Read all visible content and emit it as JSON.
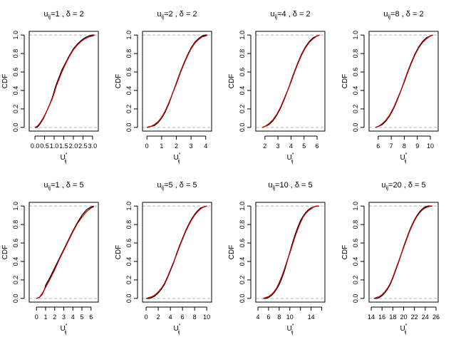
{
  "chart_data": [
    {
      "type": "line",
      "title_var": "u",
      "title_sub": "ij",
      "title_u": "1",
      "title_delta": "2",
      "xlabel_main": "U",
      "xlabel_sub": "ij",
      "ylabel": "CDF",
      "xlim": [
        -0.3,
        3.3
      ],
      "ylim": [
        -0.04,
        1.04
      ],
      "xticks": [
        0.0,
        0.5,
        1.0,
        1.5,
        2.0,
        2.5,
        3.0
      ],
      "xtick_labels": [
        "0.0",
        "0.5",
        "1.0",
        "1.5",
        "2.0",
        "2.5",
        "3.0"
      ],
      "yticks": [
        0.0,
        0.2,
        0.4,
        0.6,
        0.8,
        1.0
      ],
      "ytick_labels": [
        "0.0",
        "0.2",
        "0.4",
        "0.6",
        "0.8",
        "1.0"
      ],
      "reference_lines": [
        0,
        1
      ],
      "series": [
        {
          "color": "#000000",
          "x": [
            0.0,
            0.1,
            0.2,
            0.3,
            0.45,
            0.6,
            0.75,
            0.9,
            1.0,
            1.1,
            1.25,
            1.4,
            1.6,
            1.8,
            2.0,
            2.2,
            2.4,
            2.6,
            2.8,
            3.0,
            3.1
          ],
          "y": [
            0.0,
            0.0,
            0.02,
            0.05,
            0.1,
            0.17,
            0.24,
            0.32,
            0.39,
            0.46,
            0.54,
            0.62,
            0.7,
            0.78,
            0.85,
            0.9,
            0.94,
            0.97,
            0.99,
            1.0,
            1.0
          ]
        },
        {
          "color": "#cc0000",
          "x": [
            0.0,
            0.1,
            0.2,
            0.3,
            0.45,
            0.6,
            0.75,
            0.9,
            1.0,
            1.1,
            1.25,
            1.4,
            1.6,
            1.8,
            2.0,
            2.2,
            2.4,
            2.6,
            2.8,
            3.0,
            3.1
          ],
          "y": [
            0.0,
            0.01,
            0.03,
            0.06,
            0.11,
            0.17,
            0.24,
            0.31,
            0.37,
            0.44,
            0.52,
            0.6,
            0.69,
            0.77,
            0.84,
            0.89,
            0.93,
            0.96,
            0.98,
            0.99,
            1.0
          ]
        }
      ]
    },
    {
      "type": "line",
      "title_var": "u",
      "title_sub": "ij",
      "title_u": "2",
      "title_delta": "2",
      "xlabel_main": "U",
      "xlabel_sub": "ij",
      "ylabel": "CDF",
      "xlim": [
        -0.3,
        4.4
      ],
      "ylim": [
        -0.04,
        1.04
      ],
      "xticks": [
        0,
        1,
        2,
        3,
        4
      ],
      "xtick_labels": [
        "0",
        "1",
        "2",
        "3",
        "4"
      ],
      "yticks": [
        0.0,
        0.2,
        0.4,
        0.6,
        0.8,
        1.0
      ],
      "ytick_labels": [
        "0.0",
        "0.2",
        "0.4",
        "0.6",
        "0.8",
        "1.0"
      ],
      "reference_lines": [
        0,
        1
      ],
      "series": [
        {
          "color": "#000000",
          "x": [
            0.0,
            0.25,
            0.5,
            0.75,
            1.0,
            1.25,
            1.5,
            1.75,
            2.0,
            2.25,
            2.5,
            2.75,
            3.0,
            3.25,
            3.5,
            3.75,
            4.0,
            4.1
          ],
          "y": [
            0.0,
            0.01,
            0.02,
            0.05,
            0.1,
            0.17,
            0.26,
            0.37,
            0.48,
            0.59,
            0.69,
            0.78,
            0.86,
            0.92,
            0.96,
            0.99,
            1.0,
            1.0
          ]
        },
        {
          "color": "#cc0000",
          "x": [
            0.0,
            0.25,
            0.5,
            0.75,
            1.0,
            1.25,
            1.5,
            1.75,
            2.0,
            2.25,
            2.5,
            2.75,
            3.0,
            3.25,
            3.5,
            3.75,
            4.0,
            4.1
          ],
          "y": [
            0.0,
            0.01,
            0.03,
            0.06,
            0.11,
            0.18,
            0.27,
            0.37,
            0.47,
            0.58,
            0.68,
            0.77,
            0.85,
            0.91,
            0.95,
            0.98,
            0.99,
            1.0
          ]
        }
      ]
    },
    {
      "type": "line",
      "title_var": "u",
      "title_sub": "ij",
      "title_u": "4",
      "title_delta": "2",
      "xlabel_main": "U",
      "xlabel_sub": "ij",
      "ylabel": "CDF",
      "xlim": [
        1.3,
        6.6
      ],
      "ylim": [
        -0.04,
        1.04
      ],
      "xticks": [
        2,
        3,
        4,
        5,
        6
      ],
      "xtick_labels": [
        "2",
        "3",
        "4",
        "5",
        "6"
      ],
      "yticks": [
        0.0,
        0.2,
        0.4,
        0.6,
        0.8,
        1.0
      ],
      "ytick_labels": [
        "0.0",
        "0.2",
        "0.4",
        "0.6",
        "0.8",
        "1.0"
      ],
      "reference_lines": [
        0,
        1
      ],
      "series": [
        {
          "color": "#000000",
          "x": [
            1.8,
            2.0,
            2.3,
            2.6,
            2.9,
            3.2,
            3.5,
            3.8,
            4.0,
            4.2,
            4.5,
            4.8,
            5.1,
            5.4,
            5.7,
            6.0,
            6.2
          ],
          "y": [
            0.0,
            0.01,
            0.03,
            0.07,
            0.13,
            0.21,
            0.31,
            0.42,
            0.5,
            0.58,
            0.69,
            0.79,
            0.87,
            0.93,
            0.97,
            0.99,
            1.0
          ]
        },
        {
          "color": "#cc0000",
          "x": [
            1.8,
            2.0,
            2.3,
            2.6,
            2.9,
            3.2,
            3.5,
            3.8,
            4.0,
            4.2,
            4.5,
            4.8,
            5.1,
            5.4,
            5.7,
            6.0,
            6.2
          ],
          "y": [
            0.0,
            0.01,
            0.04,
            0.08,
            0.14,
            0.22,
            0.32,
            0.42,
            0.49,
            0.57,
            0.68,
            0.78,
            0.86,
            0.92,
            0.96,
            0.99,
            1.0
          ]
        }
      ]
    },
    {
      "type": "line",
      "title_var": "u",
      "title_sub": "ij",
      "title_u": "8",
      "title_delta": "2",
      "xlabel_main": "U",
      "xlabel_sub": "ij",
      "ylabel": "CDF",
      "xlim": [
        5.3,
        10.6
      ],
      "ylim": [
        -0.04,
        1.04
      ],
      "xticks": [
        6,
        7,
        8,
        9,
        10
      ],
      "xtick_labels": [
        "6",
        "7",
        "8",
        "9",
        "10"
      ],
      "yticks": [
        0.0,
        0.2,
        0.4,
        0.6,
        0.8,
        1.0
      ],
      "ytick_labels": [
        "0.0",
        "0.2",
        "0.4",
        "0.6",
        "0.8",
        "1.0"
      ],
      "reference_lines": [
        0,
        1
      ],
      "series": [
        {
          "color": "#000000",
          "x": [
            5.8,
            6.0,
            6.3,
            6.6,
            6.9,
            7.2,
            7.5,
            7.8,
            8.0,
            8.2,
            8.5,
            8.8,
            9.1,
            9.4,
            9.7,
            10.0,
            10.2
          ],
          "y": [
            0.0,
            0.01,
            0.03,
            0.07,
            0.13,
            0.21,
            0.31,
            0.42,
            0.5,
            0.58,
            0.69,
            0.79,
            0.87,
            0.93,
            0.97,
            0.99,
            1.0
          ]
        },
        {
          "color": "#cc0000",
          "x": [
            5.8,
            6.0,
            6.3,
            6.6,
            6.9,
            7.2,
            7.5,
            7.8,
            8.0,
            8.2,
            8.5,
            8.8,
            9.1,
            9.4,
            9.7,
            10.0,
            10.2
          ],
          "y": [
            0.0,
            0.01,
            0.04,
            0.08,
            0.14,
            0.22,
            0.32,
            0.42,
            0.49,
            0.57,
            0.68,
            0.78,
            0.86,
            0.92,
            0.96,
            0.99,
            1.0
          ]
        }
      ]
    },
    {
      "type": "line",
      "title_var": "u",
      "title_sub": "ij",
      "title_u": "1",
      "title_delta": "5",
      "xlabel_main": "U",
      "xlabel_sub": "ij",
      "ylabel": "CDF",
      "xlim": [
        -0.8,
        6.8
      ],
      "ylim": [
        -0.04,
        1.04
      ],
      "xticks": [
        0,
        1,
        2,
        3,
        4,
        5,
        6
      ],
      "xtick_labels": [
        "0",
        "1",
        "2",
        "3",
        "4",
        "5",
        "6"
      ],
      "yticks": [
        0.0,
        0.2,
        0.4,
        0.6,
        0.8,
        1.0
      ],
      "ytick_labels": [
        "0.0",
        "0.2",
        "0.4",
        "0.6",
        "0.8",
        "1.0"
      ],
      "reference_lines": [
        0,
        1
      ],
      "series": [
        {
          "color": "#000000",
          "x": [
            0.0,
            0.3,
            0.6,
            0.9,
            1.0,
            1.5,
            2.0,
            2.5,
            3.0,
            3.5,
            4.0,
            4.5,
            5.0,
            5.5,
            6.0,
            6.3
          ],
          "y": [
            0.0,
            0.01,
            0.04,
            0.1,
            0.14,
            0.23,
            0.33,
            0.43,
            0.53,
            0.63,
            0.73,
            0.82,
            0.9,
            0.96,
            0.99,
            1.0
          ]
        },
        {
          "color": "#cc0000",
          "x": [
            0.0,
            0.3,
            0.6,
            0.9,
            1.0,
            1.5,
            2.0,
            2.5,
            3.0,
            3.5,
            4.0,
            4.5,
            5.0,
            5.5,
            6.0,
            6.3
          ],
          "y": [
            0.0,
            0.01,
            0.05,
            0.1,
            0.12,
            0.21,
            0.31,
            0.42,
            0.52,
            0.62,
            0.72,
            0.81,
            0.88,
            0.94,
            0.98,
            0.99
          ]
        }
      ]
    },
    {
      "type": "line",
      "title_var": "u",
      "title_sub": "ij",
      "title_u": "5",
      "title_delta": "5",
      "xlabel_main": "U",
      "xlabel_sub": "ij",
      "ylabel": "CDF",
      "xlim": [
        -0.6,
        10.8
      ],
      "ylim": [
        -0.04,
        1.04
      ],
      "xticks": [
        0,
        2,
        4,
        6,
        8,
        10
      ],
      "xtick_labels": [
        "0",
        "2",
        "4",
        "6",
        "8",
        "10"
      ],
      "yticks": [
        0.0,
        0.2,
        0.4,
        0.6,
        0.8,
        1.0
      ],
      "ytick_labels": [
        "0.0",
        "0.2",
        "0.4",
        "0.6",
        "0.8",
        "1.0"
      ],
      "reference_lines": [
        0,
        1
      ],
      "series": [
        {
          "color": "#000000",
          "x": [
            0.0,
            0.5,
            1.0,
            1.5,
            2.0,
            2.5,
            3.0,
            3.5,
            4.0,
            4.5,
            5.0,
            5.5,
            6.0,
            6.5,
            7.0,
            7.5,
            8.0,
            8.5,
            9.0,
            9.5,
            10.0
          ],
          "y": [
            0.0,
            0.0,
            0.01,
            0.03,
            0.06,
            0.1,
            0.15,
            0.22,
            0.3,
            0.38,
            0.48,
            0.57,
            0.65,
            0.73,
            0.8,
            0.86,
            0.91,
            0.95,
            0.98,
            0.99,
            1.0
          ]
        },
        {
          "color": "#cc0000",
          "x": [
            0.0,
            0.5,
            1.0,
            1.5,
            2.0,
            2.5,
            3.0,
            3.5,
            4.0,
            4.5,
            5.0,
            5.5,
            6.0,
            6.5,
            7.0,
            7.5,
            8.0,
            8.5,
            9.0,
            9.5,
            10.0
          ],
          "y": [
            0.0,
            0.01,
            0.02,
            0.04,
            0.07,
            0.11,
            0.16,
            0.23,
            0.31,
            0.39,
            0.47,
            0.56,
            0.64,
            0.72,
            0.79,
            0.85,
            0.9,
            0.94,
            0.97,
            0.99,
            1.0
          ]
        }
      ]
    },
    {
      "type": "line",
      "title_var": "u",
      "title_sub": "ij",
      "title_u": "10",
      "title_delta": "5",
      "xlabel_main": "U",
      "xlabel_sub": "ij",
      "ylabel": "CDF",
      "xlim": [
        3.6,
        16.6
      ],
      "ylim": [
        -0.04,
        1.04
      ],
      "xticks": [
        4,
        6,
        8,
        10,
        12,
        14,
        16
      ],
      "xtick_labels": [
        "4",
        "6",
        "8",
        "10",
        "",
        "14",
        ""
      ],
      "yticks": [
        0.0,
        0.2,
        0.4,
        0.6,
        0.8,
        1.0
      ],
      "ytick_labels": [
        "0.0",
        "0.2",
        "0.4",
        "0.6",
        "0.8",
        "1.0"
      ],
      "reference_lines": [
        0,
        1
      ],
      "series": [
        {
          "color": "#000000",
          "x": [
            5.0,
            5.5,
            6.0,
            6.5,
            7.0,
            7.5,
            8.0,
            8.5,
            9.0,
            9.5,
            10.0,
            10.5,
            11.0,
            11.5,
            12.0,
            12.5,
            13.0,
            13.5,
            14.0,
            14.5,
            15.0,
            15.5
          ],
          "y": [
            0.0,
            0.0,
            0.01,
            0.03,
            0.06,
            0.1,
            0.15,
            0.22,
            0.3,
            0.4,
            0.5,
            0.6,
            0.69,
            0.77,
            0.84,
            0.89,
            0.93,
            0.96,
            0.98,
            0.99,
            1.0,
            1.0
          ]
        },
        {
          "color": "#cc0000",
          "x": [
            5.0,
            5.5,
            6.0,
            6.5,
            7.0,
            7.5,
            8.0,
            8.5,
            9.0,
            9.5,
            10.0,
            10.5,
            11.0,
            11.5,
            12.0,
            12.5,
            13.0,
            13.5,
            14.0,
            14.5,
            15.0,
            15.5
          ],
          "y": [
            0.0,
            0.01,
            0.02,
            0.04,
            0.07,
            0.11,
            0.17,
            0.24,
            0.32,
            0.41,
            0.49,
            0.58,
            0.67,
            0.75,
            0.82,
            0.88,
            0.92,
            0.95,
            0.97,
            0.99,
            1.0,
            1.0
          ]
        }
      ]
    },
    {
      "type": "line",
      "title_var": "u",
      "title_sub": "ij",
      "title_u": "20",
      "title_delta": "5",
      "xlabel_main": "U",
      "xlabel_sub": "ij",
      "ylabel": "CDF",
      "xlim": [
        13.6,
        26.4
      ],
      "ylim": [
        -0.04,
        1.04
      ],
      "xticks": [
        14,
        16,
        18,
        20,
        22,
        24,
        26
      ],
      "xtick_labels": [
        "14",
        "16",
        "18",
        "20",
        "22",
        "24",
        "26"
      ],
      "yticks": [
        0.0,
        0.2,
        0.4,
        0.6,
        0.8,
        1.0
      ],
      "ytick_labels": [
        "0.0",
        "0.2",
        "0.4",
        "0.6",
        "0.8",
        "1.0"
      ],
      "reference_lines": [
        0,
        1
      ],
      "series": [
        {
          "color": "#000000",
          "x": [
            14.5,
            15.0,
            15.5,
            16.0,
            16.5,
            17.0,
            17.5,
            18.0,
            18.5,
            19.0,
            19.5,
            20.0,
            20.5,
            21.0,
            21.5,
            22.0,
            22.5,
            23.0,
            23.5,
            24.0,
            24.5,
            25.0,
            25.3
          ],
          "y": [
            0.0,
            0.0,
            0.01,
            0.03,
            0.06,
            0.1,
            0.15,
            0.22,
            0.3,
            0.38,
            0.47,
            0.56,
            0.64,
            0.72,
            0.79,
            0.85,
            0.9,
            0.94,
            0.97,
            0.99,
            1.0,
            1.0,
            1.0
          ]
        },
        {
          "color": "#cc0000",
          "x": [
            14.5,
            15.0,
            15.5,
            16.0,
            16.5,
            17.0,
            17.5,
            18.0,
            18.5,
            19.0,
            19.5,
            20.0,
            20.5,
            21.0,
            21.5,
            22.0,
            22.5,
            23.0,
            23.5,
            24.0,
            24.5,
            25.0,
            25.3
          ],
          "y": [
            0.0,
            0.01,
            0.02,
            0.04,
            0.07,
            0.11,
            0.16,
            0.23,
            0.31,
            0.39,
            0.47,
            0.55,
            0.63,
            0.71,
            0.78,
            0.84,
            0.89,
            0.93,
            0.96,
            0.98,
            0.99,
            1.0,
            1.0
          ]
        }
      ]
    }
  ]
}
